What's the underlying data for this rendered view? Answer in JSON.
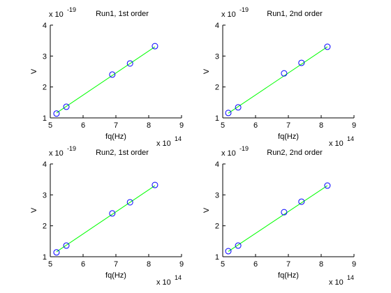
{
  "chart_data": [
    {
      "type": "scatter",
      "title": "Run1, 1st order",
      "xlabel": "fq(Hz)",
      "ylabel": "V",
      "x_multiplier": {
        "base": "x 10",
        "exponent": "14"
      },
      "y_multiplier": {
        "base": "x 10",
        "exponent": "-19"
      },
      "xlim": [
        5,
        9
      ],
      "ylim": [
        1,
        4
      ],
      "xticks": [
        5,
        6,
        7,
        8,
        9
      ],
      "yticks": [
        1,
        2,
        3,
        4
      ],
      "series": [
        {
          "kind": "scatter",
          "color": "#0000ff",
          "x": [
            5.19,
            5.49,
            6.89,
            7.43,
            8.19
          ],
          "values": [
            1.14,
            1.36,
            2.4,
            2.76,
            3.32
          ]
        },
        {
          "kind": "line",
          "color": "#00ff00",
          "x": [
            5.19,
            8.19
          ],
          "values": [
            1.16,
            3.3
          ]
        }
      ]
    },
    {
      "type": "scatter",
      "title": "Run1, 2nd order",
      "xlabel": "fq(Hz)",
      "ylabel": "V",
      "x_multiplier": {
        "base": "x 10",
        "exponent": "14"
      },
      "y_multiplier": {
        "base": "x 10",
        "exponent": "-19"
      },
      "xlim": [
        5,
        9
      ],
      "ylim": [
        1,
        4
      ],
      "xticks": [
        5,
        6,
        7,
        8,
        9
      ],
      "yticks": [
        1,
        2,
        3,
        4
      ],
      "series": [
        {
          "kind": "scatter",
          "color": "#0000ff",
          "x": [
            5.17,
            5.47,
            6.87,
            7.4,
            8.19
          ],
          "values": [
            1.16,
            1.34,
            2.44,
            2.78,
            3.3
          ]
        },
        {
          "kind": "line",
          "color": "#00ff00",
          "x": [
            5.17,
            8.19
          ],
          "values": [
            1.15,
            3.3
          ]
        }
      ]
    },
    {
      "type": "scatter",
      "title": "Run2, 1st order",
      "xlabel": "fq(Hz)",
      "ylabel": "V",
      "x_multiplier": {
        "base": "x 10",
        "exponent": "14"
      },
      "y_multiplier": {
        "base": "x 10",
        "exponent": "-19"
      },
      "xlim": [
        5,
        9
      ],
      "ylim": [
        1,
        4
      ],
      "xticks": [
        5,
        6,
        7,
        8,
        9
      ],
      "yticks": [
        1,
        2,
        3,
        4
      ],
      "series": [
        {
          "kind": "scatter",
          "color": "#0000ff",
          "x": [
            5.19,
            5.49,
            6.89,
            7.43,
            8.19
          ],
          "values": [
            1.14,
            1.36,
            2.4,
            2.76,
            3.32
          ]
        },
        {
          "kind": "line",
          "color": "#00ff00",
          "x": [
            5.19,
            8.19
          ],
          "values": [
            1.16,
            3.3
          ]
        }
      ]
    },
    {
      "type": "scatter",
      "title": "Run2, 2nd order",
      "xlabel": "fq(Hz)",
      "ylabel": "V",
      "x_multiplier": {
        "base": "x 10",
        "exponent": "14"
      },
      "y_multiplier": {
        "base": "x 10",
        "exponent": "-19"
      },
      "xlim": [
        5,
        9
      ],
      "ylim": [
        1,
        4
      ],
      "xticks": [
        5,
        6,
        7,
        8,
        9
      ],
      "yticks": [
        1,
        2,
        3,
        4
      ],
      "series": [
        {
          "kind": "scatter",
          "color": "#0000ff",
          "x": [
            5.17,
            5.47,
            6.87,
            7.4,
            8.19
          ],
          "values": [
            1.18,
            1.36,
            2.44,
            2.78,
            3.3
          ]
        },
        {
          "kind": "line",
          "color": "#00ff00",
          "x": [
            5.17,
            8.19
          ],
          "values": [
            1.17,
            3.3
          ]
        }
      ]
    }
  ]
}
